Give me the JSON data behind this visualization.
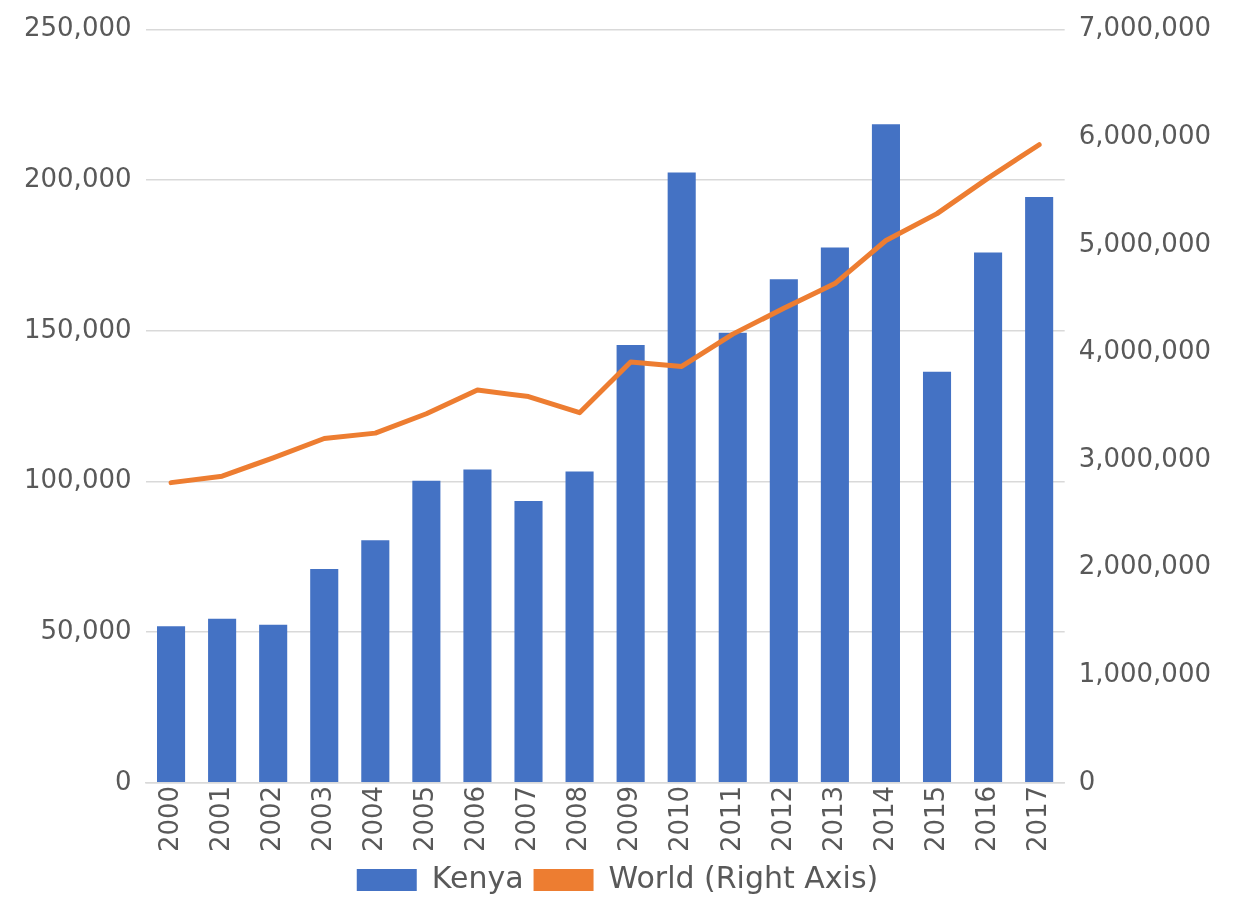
{
  "chart_data": {
    "type": "bar",
    "categories": [
      "2000",
      "2001",
      "2002",
      "2003",
      "2004",
      "2005",
      "2006",
      "2007",
      "2008",
      "2009",
      "2010",
      "2011",
      "2012",
      "2013",
      "2014",
      "2015",
      "2016",
      "2017"
    ],
    "series": [
      {
        "name": "Kenya",
        "color": "#4472c4",
        "values": [
          52000,
          54500,
          52500,
          71000,
          80500,
          100300,
          104000,
          93500,
          103300,
          145300,
          202600,
          149400,
          167100,
          177700,
          218600,
          136400,
          176000,
          194400
        ]
      },
      {
        "name": "World (Right Axis)",
        "type": "line",
        "axis": "y2",
        "color": "#ed7d31",
        "values": [
          2790000,
          2850000,
          3020000,
          3200000,
          3250000,
          3430000,
          3650000,
          3590000,
          3440000,
          3910000,
          3870000,
          4170000,
          4410000,
          4640000,
          5040000,
          5290000,
          5620000,
          5930000
        ]
      }
    ],
    "ylim": [
      0,
      250000
    ],
    "yticks": [
      0,
      {
        "value": 50000,
        "label": "50,000"
      },
      {
        "value": 100000,
        "label": "100,000"
      },
      {
        "value": 150000,
        "label": "150,000"
      },
      {
        "value": 200000,
        "label": "200,000"
      },
      {
        "value": 250000,
        "label": "250,000"
      }
    ],
    "y2lim": [
      0,
      7000000
    ],
    "y2ticks": [
      0,
      {
        "value": 1000000,
        "label": "1,000,000"
      },
      {
        "value": 2000000,
        "label": "2,000,000"
      },
      {
        "value": 3000000,
        "label": "3,000,000"
      },
      {
        "value": 4000000,
        "label": "4,000,000"
      },
      {
        "value": 5000000,
        "label": "5,000,000"
      },
      {
        "value": 6000000,
        "label": "6,000,000"
      },
      {
        "value": 7000000,
        "label": "7,000,000"
      }
    ],
    "grid": "y",
    "legend": "bottom",
    "marker": "none"
  }
}
